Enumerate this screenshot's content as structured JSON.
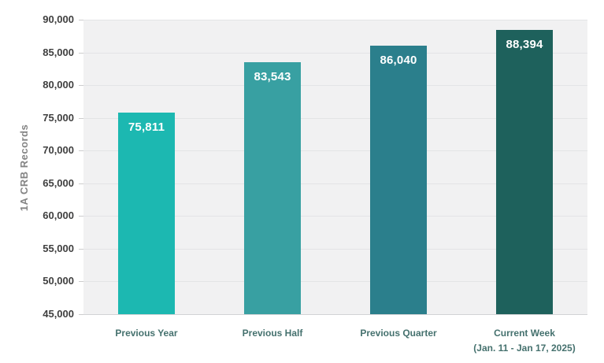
{
  "colors": {
    "background": "#ffffff",
    "plot_bg": "#f1f1f2",
    "gridline": "#e3e4e6",
    "axis_line": "#d2d3d5",
    "tick_mark": "#cccccd",
    "ytick_text": "#3f3f3f",
    "xlabel_text": "#45716e",
    "ylabel_text": "#848484",
    "value_text": "#ffffff"
  },
  "chart_data": {
    "type": "bar",
    "title": "",
    "xlabel": "",
    "ylabel": "1A CRB Records",
    "ylim": [
      45000,
      90000
    ],
    "ytick_step": 5000,
    "ytick_labels": [
      "45,000",
      "50,000",
      "55,000",
      "60,000",
      "65,000",
      "70,000",
      "75,000",
      "80,000",
      "85,000",
      "90,000"
    ],
    "grid": true,
    "legend_position": "none",
    "categories": [
      {
        "label": "Previous Year",
        "sublabel": ""
      },
      {
        "label": "Previous Half",
        "sublabel": ""
      },
      {
        "label": "Previous Quarter",
        "sublabel": ""
      },
      {
        "label": "Current Week",
        "sublabel": "(Jan. 11 - Jan 17, 2025)"
      }
    ],
    "values": [
      75811,
      83543,
      86040,
      88394
    ],
    "value_labels": [
      "75,811",
      "83,543",
      "86,040",
      "88,394"
    ],
    "bar_colors": [
      "#1cb8b1",
      "#38a0a2",
      "#2b7f8c",
      "#1e615c"
    ]
  }
}
